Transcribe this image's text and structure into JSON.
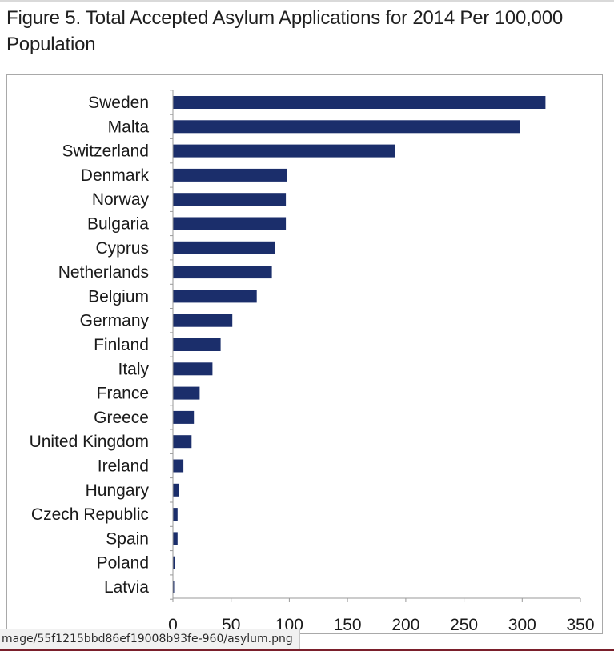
{
  "figure": {
    "title": "Figure 5. Total Accepted Asylum Applications for 2014 Per 100,000 Population"
  },
  "status_bar": {
    "url_text": "mage/55f1215bbd86ef19008b93fe-960/asylum.png"
  },
  "colors": {
    "bar": "#1b2e6b",
    "axis": "#9a9a9a"
  },
  "chart_data": {
    "type": "bar",
    "orientation": "horizontal",
    "title": "Figure 5. Total Accepted Asylum Applications for 2014 Per 100,000 Population",
    "xlabel": "",
    "ylabel": "",
    "xlim": [
      0,
      350
    ],
    "x_ticks": [
      0,
      50,
      100,
      150,
      200,
      250,
      300,
      350
    ],
    "grid": false,
    "legend": "none",
    "categories": [
      "Sweden",
      "Malta",
      "Switzerland",
      "Denmark",
      "Norway",
      "Bulgaria",
      "Cyprus",
      "Netherlands",
      "Belgium",
      "Germany",
      "Finland",
      "Italy",
      "France",
      "Greece",
      "United Kingdom",
      "Ireland",
      "Hungary",
      "Czech Republic",
      "Spain",
      "Poland",
      "Latvia"
    ],
    "values": [
      320,
      298,
      191,
      98,
      97,
      97,
      88,
      85,
      72,
      51,
      41,
      34,
      23,
      18,
      16,
      9,
      5,
      4,
      4,
      2,
      1
    ]
  }
}
